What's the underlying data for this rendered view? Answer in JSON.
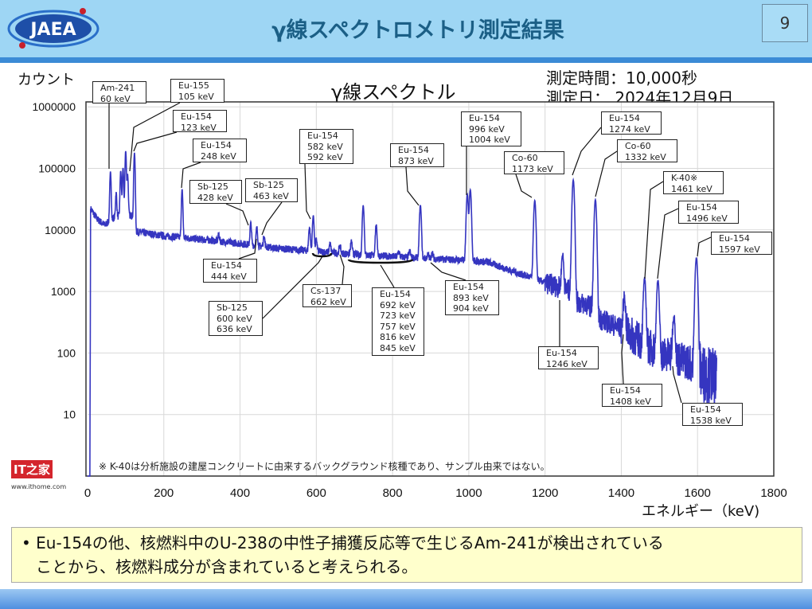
{
  "header": {
    "logo_text": "JAEA",
    "title": "γ線スペクトロメトリ測定結果",
    "page_number": "9"
  },
  "chart_meta": {
    "measure_time": "測定時間：10,000秒",
    "measure_date": "測定日： 2024年12月9日"
  },
  "footnote": "※ K-40は分析施設の建屋コンクリートに由来するバックグラウンド核種であり、サンプル由来ではない。",
  "note": {
    "bullet": "•",
    "text_line1": "Eu-154の他、核燃料中のU-238の中性子捕獲反応等で生じるAm-241が検出されている",
    "text_line2": "ことから、核燃料成分が含まれていると考えられる。"
  },
  "watermark": {
    "logo": "IT之家",
    "url": "www.ithome.com"
  },
  "colors": {
    "header_bg": "#9ed6f4",
    "title": "#1b5f86",
    "spectrum": "#3535c0",
    "note_bg": "#ffffcc"
  },
  "chart_data": {
    "type": "line",
    "title": "γ線スペクトル",
    "xlabel": "エネルギー（keV)",
    "ylabel": "カウント",
    "xlim": [
      0,
      1800
    ],
    "ylim": [
      1,
      1000000
    ],
    "yscale": "log",
    "grid": true,
    "x_ticks": [
      "0",
      "200",
      "400",
      "600",
      "800",
      "1000",
      "1200",
      "1400",
      "1600",
      "1800"
    ],
    "y_ticks": [
      "1000000",
      "100000",
      "10000",
      "1000",
      "100",
      "10"
    ],
    "continuum": [
      [
        0,
        1
      ],
      [
        6,
        1
      ],
      [
        8,
        22000
      ],
      [
        25,
        15000
      ],
      [
        45,
        12000
      ],
      [
        70,
        16000
      ],
      [
        100,
        18000
      ],
      [
        118,
        17000
      ],
      [
        122,
        9500
      ],
      [
        200,
        8000
      ],
      [
        300,
        7000
      ],
      [
        400,
        6000
      ],
      [
        500,
        5000
      ],
      [
        600,
        4500
      ],
      [
        700,
        4000
      ],
      [
        800,
        3700
      ],
      [
        900,
        3400
      ],
      [
        1000,
        3200
      ],
      [
        1050,
        3000
      ],
      [
        1100,
        2300
      ],
      [
        1200,
        1400
      ],
      [
        1270,
        1000
      ],
      [
        1276,
        700
      ],
      [
        1330,
        550
      ],
      [
        1336,
        380
      ],
      [
        1400,
        250
      ],
      [
        1460,
        140
      ],
      [
        1500,
        100
      ],
      [
        1580,
        70
      ],
      [
        1600,
        50
      ],
      [
        1650,
        40
      ]
    ],
    "peaks": [
      [
        60,
        90000
      ],
      [
        75,
        40000
      ],
      [
        87,
        90000
      ],
      [
        93,
        100000
      ],
      [
        100,
        190000
      ],
      [
        105,
        80000
      ],
      [
        123,
        180000
      ],
      [
        248,
        45000
      ],
      [
        344,
        8500
      ],
      [
        428,
        13000
      ],
      [
        444,
        11000
      ],
      [
        463,
        8000
      ],
      [
        582,
        11000
      ],
      [
        592,
        17000
      ],
      [
        600,
        7000
      ],
      [
        636,
        6000
      ],
      [
        662,
        5500
      ],
      [
        692,
        6500
      ],
      [
        723,
        25000
      ],
      [
        757,
        12000
      ],
      [
        816,
        4500
      ],
      [
        845,
        4500
      ],
      [
        873,
        25000
      ],
      [
        893,
        4000
      ],
      [
        904,
        4200
      ],
      [
        996,
        38000
      ],
      [
        1004,
        45000
      ],
      [
        1173,
        30000
      ],
      [
        1246,
        4000
      ],
      [
        1274,
        65000
      ],
      [
        1332,
        31000
      ],
      [
        1408,
        800
      ],
      [
        1461,
        1600
      ],
      [
        1496,
        1500
      ],
      [
        1538,
        400
      ],
      [
        1597,
        3500
      ]
    ],
    "annotations": [
      "Am-241\n60 keV",
      "Eu-155\n105 keV",
      "Eu-154\n123 keV",
      "Eu-154\n248 keV",
      "Sb-125\n428 keV",
      "Sb-125\n463 keV",
      "Eu-154\n582 keV\n592 keV",
      "Eu-154\n873 keV",
      "Eu-154\n996 keV\n1004 keV",
      "Co-60\n1173 keV",
      "Eu-154\n1274 keV",
      "Co-60\n1332 keV",
      "K-40※\n1461 keV",
      "Eu-154\n1496 keV",
      "Eu-154\n1597 keV",
      "Eu-154\n444 keV",
      "Sb-125\n600 keV\n636 keV",
      "Cs-137\n662 keV",
      "Eu-154\n692 keV\n723 keV\n757 keV\n816 keV\n845 keV",
      "Eu-154\n893 keV\n904 keV",
      "Eu-154\n1246 keV",
      "Eu-154\n1408 keV",
      "Eu-154\n1538 keV"
    ]
  }
}
